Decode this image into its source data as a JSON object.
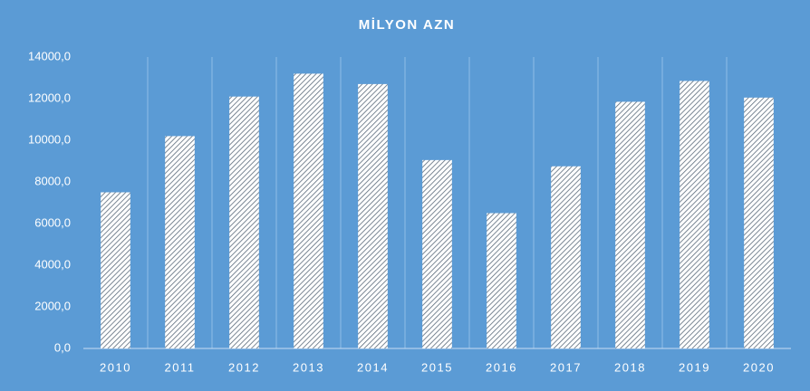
{
  "chart_data": {
    "type": "bar",
    "title": "MİLYON AZN",
    "categories": [
      "2010",
      "2011",
      "2012",
      "2013",
      "2014",
      "2015",
      "2016",
      "2017",
      "2018",
      "2019",
      "2020"
    ],
    "values": [
      7500,
      10200,
      12100,
      13200,
      12700,
      9050,
      6500,
      8750,
      11850,
      12850,
      12050
    ],
    "color": "#ffffff",
    "background": "#5b9bd5",
    "ylim": [
      0,
      14000
    ],
    "yticks": [
      {
        "value": 0,
        "label": "0,0"
      },
      {
        "value": 2000,
        "label": "2000,0"
      },
      {
        "value": 4000,
        "label": "4000,0"
      },
      {
        "value": 6000,
        "label": "6000,0"
      },
      {
        "value": 8000,
        "label": "8000,0"
      },
      {
        "value": 10000,
        "label": "10000,0"
      },
      {
        "value": 12000,
        "label": "12000,0"
      },
      {
        "value": 14000,
        "label": "14000,0"
      }
    ]
  }
}
